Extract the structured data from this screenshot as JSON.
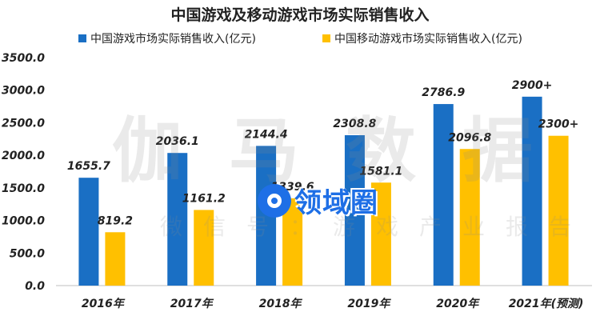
{
  "chart_data": {
    "type": "bar",
    "title": "中国游戏及移动游戏市场实际销售收入",
    "xlabel": "",
    "ylabel": "",
    "categories": [
      "2016年",
      "2017年",
      "2018年",
      "2019年",
      "2020年",
      "2021年(预测)"
    ],
    "series": [
      {
        "name": "中国游戏市场实际销售收入(亿元)",
        "color": "#1a6fc4",
        "values": [
          1655.7,
          2036.1,
          2144.4,
          2308.8,
          2786.9,
          2900
        ],
        "labels": [
          "1655.7",
          "2036.1",
          "2144.4",
          "2308.8",
          "2786.9",
          "2900+"
        ]
      },
      {
        "name": "中国移动游戏市场实际销售收入(亿元)",
        "color": "#ffc000",
        "values": [
          819.2,
          1161.2,
          1339.6,
          1581.1,
          2096.8,
          2300
        ],
        "labels": [
          "819.2",
          "1161.2",
          "1339.6",
          "1581.1",
          "2096.8",
          "2300+"
        ]
      }
    ],
    "yticks": [
      "0.0",
      "500.0",
      "1000.0",
      "1500.0",
      "2000.0",
      "2500.0",
      "3000.0",
      "3500.0"
    ],
    "ylim": [
      0,
      3500
    ],
    "grid": false,
    "legend": "top"
  },
  "watermark": {
    "main": "伽马数据",
    "sub": "微信号：游戏产业报告",
    "logo_text": "领域圈"
  }
}
